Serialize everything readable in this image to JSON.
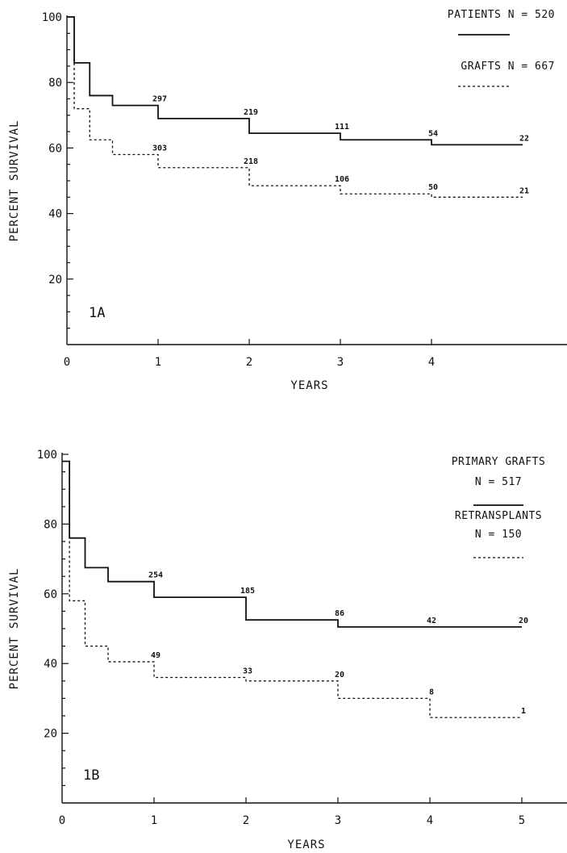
{
  "chart_data": [
    {
      "type": "line",
      "step": true,
      "panel_label": "1A",
      "xlabel": "YEARS",
      "ylabel": "PERCENT SURVIVAL",
      "xlim": [
        0,
        5.5
      ],
      "ylim": [
        0,
        100
      ],
      "x_ticks": [
        0,
        1,
        2,
        3,
        4
      ],
      "y_ticks": [
        20,
        40,
        60,
        80,
        100
      ],
      "legend": "top-right",
      "series": [
        {
          "name": "PATIENTS",
          "legend_line1": "PATIENTS   N = 520",
          "style": "solid",
          "points": [
            [
              0,
              100
            ],
            [
              0.08,
              86
            ],
            [
              0.25,
              76
            ],
            [
              0.5,
              73
            ],
            [
              1,
              69
            ],
            [
              2,
              64.5
            ],
            [
              3,
              62.5
            ],
            [
              4,
              61
            ],
            [
              5,
              61
            ]
          ],
          "risk_labels": [
            {
              "x": 1,
              "y": 73,
              "text": "297"
            },
            {
              "x": 2,
              "y": 69,
              "text": "219"
            },
            {
              "x": 3,
              "y": 64.5,
              "text": "111"
            },
            {
              "x": 4,
              "y": 62.5,
              "text": "54"
            },
            {
              "x": 5,
              "y": 61,
              "text": "22"
            }
          ]
        },
        {
          "name": "GRAFTS",
          "legend_line1": "GRAFTS   N = 667",
          "style": "dashed",
          "points": [
            [
              0,
              100
            ],
            [
              0.08,
              72
            ],
            [
              0.25,
              62.5
            ],
            [
              0.5,
              58
            ],
            [
              1,
              54
            ],
            [
              2,
              48.5
            ],
            [
              3,
              46
            ],
            [
              4,
              45
            ],
            [
              5,
              45
            ]
          ],
          "risk_labels": [
            {
              "x": 1,
              "y": 58,
              "text": "303"
            },
            {
              "x": 2,
              "y": 54,
              "text": "218"
            },
            {
              "x": 3,
              "y": 48.5,
              "text": "106"
            },
            {
              "x": 4,
              "y": 46,
              "text": "50"
            },
            {
              "x": 5,
              "y": 45,
              "text": "21"
            }
          ]
        }
      ]
    },
    {
      "type": "line",
      "step": true,
      "panel_label": "1B",
      "xlabel": "YEARS",
      "ylabel": "PERCENT SURVIVAL",
      "xlim": [
        0,
        5.5
      ],
      "ylim": [
        0,
        100
      ],
      "x_ticks": [
        0,
        1,
        2,
        3,
        4,
        5
      ],
      "y_ticks": [
        20,
        40,
        60,
        80,
        100
      ],
      "legend": "top-right",
      "series": [
        {
          "name": "PRIMARY GRAFTS",
          "legend_line1": "PRIMARY GRAFTS",
          "legend_line2": "N = 517",
          "style": "solid",
          "points": [
            [
              0,
              98
            ],
            [
              0.08,
              76
            ],
            [
              0.25,
              67.5
            ],
            [
              0.5,
              63.5
            ],
            [
              1,
              59
            ],
            [
              2,
              52.5
            ],
            [
              3,
              50.5
            ],
            [
              4,
              50.5
            ],
            [
              5,
              50.5
            ]
          ],
          "risk_labels": [
            {
              "x": 1,
              "y": 63.5,
              "text": "254"
            },
            {
              "x": 2,
              "y": 59,
              "text": "185"
            },
            {
              "x": 3,
              "y": 52.5,
              "text": "86"
            },
            {
              "x": 4,
              "y": 50.5,
              "text": "42"
            },
            {
              "x": 5,
              "y": 50.5,
              "text": "20"
            }
          ]
        },
        {
          "name": "RETRANSPLANTS",
          "legend_line1": "RETRANSPLANTS",
          "legend_line2": "N = 150",
          "style": "dashed",
          "points": [
            [
              0,
              98
            ],
            [
              0.08,
              58
            ],
            [
              0.25,
              45
            ],
            [
              0.5,
              40.5
            ],
            [
              1,
              36
            ],
            [
              2,
              35
            ],
            [
              3,
              30
            ],
            [
              4,
              24.5
            ],
            [
              5,
              24.5
            ]
          ],
          "risk_labels": [
            {
              "x": 1,
              "y": 40.5,
              "text": "49"
            },
            {
              "x": 2,
              "y": 36,
              "text": "33"
            },
            {
              "x": 3,
              "y": 35,
              "text": "20"
            },
            {
              "x": 4,
              "y": 30,
              "text": "8"
            },
            {
              "x": 5,
              "y": 24.5,
              "text": "1"
            }
          ]
        }
      ]
    }
  ]
}
